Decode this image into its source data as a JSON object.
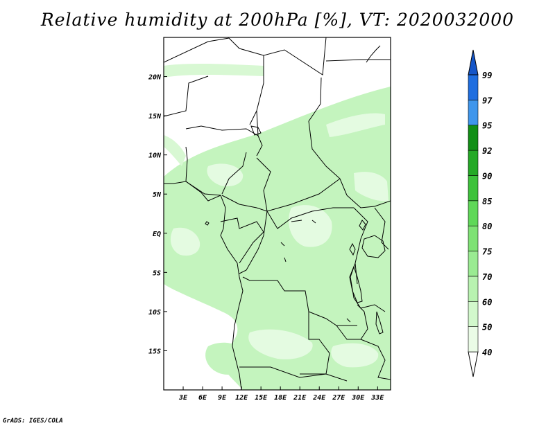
{
  "title": "Relative humidity at 200hPa [%], VT: 2020032000",
  "credit": "GrADS: IGES/COLA",
  "map": {
    "lon_range": [
      0,
      35
    ],
    "lat_range": [
      -20,
      25
    ],
    "lat_ticks": [
      {
        "lat": 20,
        "label": "20N"
      },
      {
        "lat": 15,
        "label": "15N"
      },
      {
        "lat": 10,
        "label": "10N"
      },
      {
        "lat": 5,
        "label": "5N"
      },
      {
        "lat": 0,
        "label": "EQ"
      },
      {
        "lat": -5,
        "label": "5S"
      },
      {
        "lat": -10,
        "label": "10S"
      },
      {
        "lat": -15,
        "label": "15S"
      }
    ],
    "lon_ticks": [
      {
        "lon": 3,
        "label": "3E"
      },
      {
        "lon": 6,
        "label": "6E"
      },
      {
        "lon": 9,
        "label": "9E"
      },
      {
        "lon": 12,
        "label": "12E"
      },
      {
        "lon": 15,
        "label": "15E"
      },
      {
        "lon": 18,
        "label": "18E"
      },
      {
        "lon": 21,
        "label": "21E"
      },
      {
        "lon": 24,
        "label": "24E"
      },
      {
        "lon": 27,
        "label": "27E"
      },
      {
        "lon": 30,
        "label": "30E"
      },
      {
        "lon": 33,
        "label": "33E"
      }
    ],
    "humidity_color": "#c4f4be",
    "humidity_color_light": "#e4fbe1",
    "border_color": "#000000"
  },
  "colorbar": {
    "levels": [
      "40",
      "50",
      "60",
      "70",
      "75",
      "80",
      "85",
      "90",
      "92",
      "95",
      "97",
      "99"
    ],
    "colors": [
      "#ffffff",
      "#eafbe6",
      "#d2f8cc",
      "#b8f2b0",
      "#9aeb92",
      "#7ee274",
      "#5fd858",
      "#3dc23b",
      "#24a926",
      "#118f16",
      "#3f96ec",
      "#1f6ee0",
      "#1556c8"
    ]
  }
}
